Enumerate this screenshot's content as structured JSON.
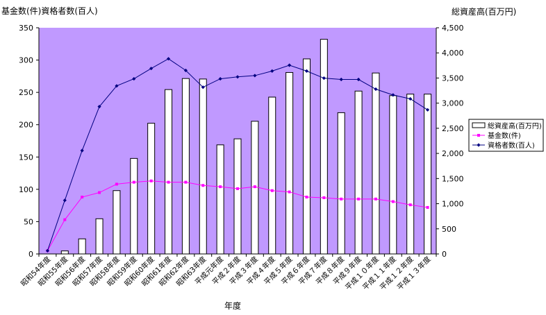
{
  "chart_data": {
    "type": "bar+line",
    "left_axis_title": "基金数(件)資格者数(百人)",
    "right_axis_title": "総資産高(百万円)",
    "xlabel": "年度",
    "categories": [
      "昭和54年度",
      "昭和55年度",
      "昭和56年度",
      "昭和57年度",
      "昭和58年度",
      "昭和59年度",
      "昭和60年度",
      "昭和61年度",
      "昭和62年度",
      "昭和63年度",
      "平成元年度",
      "平成２年度",
      "平成３年度",
      "平成４年度",
      "平成５年度",
      "平成６年度",
      "平成７年度",
      "平成８年度",
      "平成９年度",
      "平成１０年度",
      "平成１１年度",
      "平成１２年度",
      "平成１３年度"
    ],
    "left_ylim": [
      0,
      350
    ],
    "left_ticks": [
      "0",
      "50",
      "100",
      "150",
      "200",
      "250",
      "300",
      "350"
    ],
    "right_ylim": [
      0,
      4500
    ],
    "right_ticks": [
      "0",
      "500",
      "1,000",
      "1,500",
      "2,000",
      "2,500",
      "3,000",
      "3,500",
      "4,000",
      "4,500"
    ],
    "series": [
      {
        "name": "総資産高(百万円)",
        "type": "bar",
        "axis": "right",
        "values": [
          0,
          60,
          300,
          700,
          1260,
          1900,
          2600,
          3270,
          3490,
          3480,
          2170,
          2290,
          2640,
          3120,
          3610,
          3880,
          4270,
          2810,
          3240,
          3600,
          3150,
          3180,
          3180
        ]
      },
      {
        "name": "基金数(件)",
        "type": "line",
        "axis": "left",
        "values": [
          5,
          53,
          88,
          95,
          108,
          111,
          113,
          111,
          111,
          106,
          104,
          101,
          104,
          98,
          96,
          88,
          87,
          85,
          85,
          85,
          81,
          76,
          72
        ]
      },
      {
        "name": "資格者数(百人)",
        "type": "line",
        "axis": "left",
        "values": [
          5,
          83,
          160,
          228,
          260,
          271,
          287,
          302,
          284,
          258,
          271,
          274,
          276,
          283,
          292,
          283,
          272,
          270,
          270,
          255,
          246,
          240,
          223
        ]
      }
    ],
    "legend_position": "right",
    "colors": {
      "plot_bg": "#c099ff",
      "bar_fill": "#ffffff",
      "bar_stroke": "#000000",
      "fund_line": "#ff00ff",
      "member_line": "#000080"
    }
  }
}
